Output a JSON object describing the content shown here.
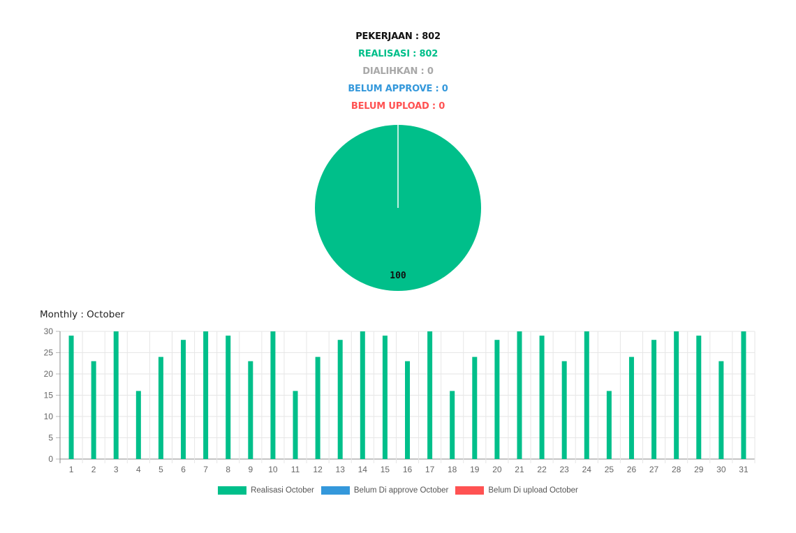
{
  "summary": {
    "total": "PEKERJAAN : 802",
    "realisasi": "REALISASI : 802",
    "dialihkan": "DIALIHKAN : 0",
    "belum_approve": "BELUM APPROVE : 0",
    "belum_upload": "BELUM UPLOAD : 0"
  },
  "colors": {
    "realisasi": "#00bf8a",
    "dialihkan": "#a8a8a8",
    "belum_approve": "#3498db",
    "belum_upload": "#ff5252"
  },
  "monthly_title": "Monthly : October",
  "chart_data": [
    {
      "type": "pie",
      "labels": [
        "100"
      ],
      "values": [
        100
      ],
      "colors": [
        "#00bf8a"
      ]
    },
    {
      "type": "bar",
      "categories": [
        "1",
        "2",
        "3",
        "4",
        "5",
        "6",
        "7",
        "8",
        "9",
        "10",
        "11",
        "12",
        "13",
        "14",
        "15",
        "16",
        "17",
        "18",
        "19",
        "20",
        "21",
        "22",
        "23",
        "24",
        "25",
        "26",
        "27",
        "28",
        "29",
        "30",
        "31"
      ],
      "series": [
        {
          "name": "Realisasi October",
          "color": "#00bf8a",
          "values": [
            29,
            23,
            30,
            16,
            24,
            28,
            30,
            29,
            23,
            30,
            16,
            24,
            28,
            30,
            29,
            23,
            30,
            16,
            24,
            28,
            30,
            29,
            23,
            30,
            16,
            24,
            28,
            30,
            29,
            23,
            30
          ]
        },
        {
          "name": "Belum Di approve October",
          "color": "#3498db",
          "values": [
            0,
            0,
            0,
            0,
            0,
            0,
            0,
            0,
            0,
            0,
            0,
            0,
            0,
            0,
            0,
            0,
            0,
            0,
            0,
            0,
            0,
            0,
            0,
            0,
            0,
            0,
            0,
            0,
            0,
            0,
            0
          ]
        },
        {
          "name": "Belum Di upload October",
          "color": "#ff5252",
          "values": [
            0,
            0,
            0,
            0,
            0,
            0,
            0,
            0,
            0,
            0,
            0,
            0,
            0,
            0,
            0,
            0,
            0,
            0,
            0,
            0,
            0,
            0,
            0,
            0,
            0,
            0,
            0,
            0,
            0,
            0,
            0
          ]
        }
      ],
      "yticks": [
        "0",
        "5",
        "10",
        "15",
        "20",
        "25",
        "30"
      ],
      "ylim": [
        0,
        30
      ],
      "grid": true,
      "legend": "bottom"
    }
  ]
}
